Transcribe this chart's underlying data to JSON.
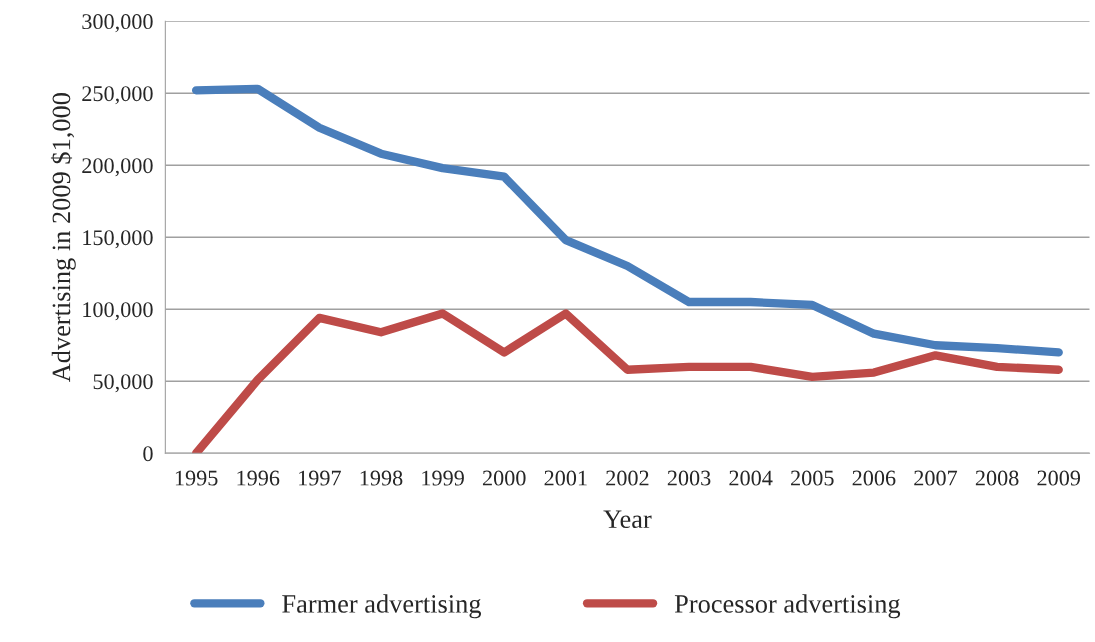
{
  "chart_data": {
    "type": "line",
    "xlabel": "Year",
    "ylabel": "Advertising in 2009 $1,000",
    "categories": [
      "1995",
      "1996",
      "1997",
      "1998",
      "1999",
      "2000",
      "2001",
      "2002",
      "2003",
      "2004",
      "2005",
      "2006",
      "2007",
      "2008",
      "2009"
    ],
    "series": [
      {
        "name": "Farmer advertising",
        "color": "#4a7ebb",
        "values": [
          252000,
          253000,
          226000,
          208000,
          198000,
          192000,
          148000,
          130000,
          105000,
          105000,
          103000,
          83000,
          75000,
          73000,
          70000
        ]
      },
      {
        "name": "Processor advertising",
        "color": "#be4b48",
        "values": [
          0,
          51000,
          94000,
          84000,
          97000,
          70000,
          97000,
          58000,
          60000,
          60000,
          53000,
          56000,
          68000,
          60000,
          58000
        ]
      }
    ],
    "ylim": [
      0,
      300000
    ],
    "yticks": [
      {
        "value": 0,
        "label": "0"
      },
      {
        "value": 50000,
        "label": "50,000"
      },
      {
        "value": 100000,
        "label": "100,000"
      },
      {
        "value": 150000,
        "label": "150,000"
      },
      {
        "value": 200000,
        "label": "200,000"
      },
      {
        "value": 250000,
        "label": "250,000"
      },
      {
        "value": 300000,
        "label": "300,000"
      }
    ],
    "grid": "y",
    "legend": "bottom",
    "marker": "none",
    "line_style": "solid"
  }
}
